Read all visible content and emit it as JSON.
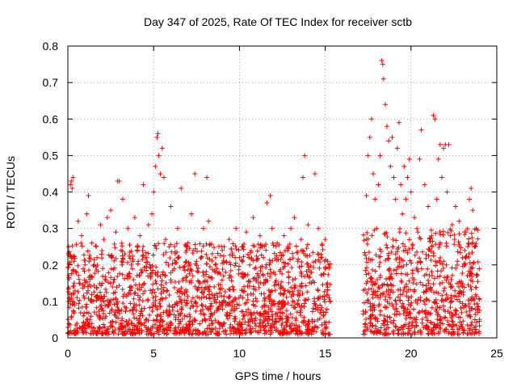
{
  "chart_data": {
    "type": "scatter",
    "title": "Day 347 of 2025, Rate Of TEC Index for receiver sctb",
    "xlabel": "GPS time / hours",
    "ylabel": "ROTI / TECUs",
    "xlim": [
      0,
      25
    ],
    "ylim": [
      0,
      0.8
    ],
    "xticks": [
      0,
      5,
      10,
      15,
      20,
      25
    ],
    "yticks": [
      0,
      0.1,
      0.2,
      0.3,
      0.4,
      0.5,
      0.6,
      0.7,
      0.8
    ],
    "grid": true,
    "marker": "+",
    "color": "#ff0000",
    "series": [
      {
        "points": [
          [
            0.05,
            0.25
          ],
          [
            0.1,
            0.12
          ],
          [
            0.15,
            0.42
          ],
          [
            0.2,
            0.43
          ],
          [
            0.25,
            0.41
          ],
          [
            0.3,
            0.44
          ],
          [
            0.35,
            0.21
          ],
          [
            0.4,
            0.09
          ],
          [
            0.5,
            0.18
          ],
          [
            0.6,
            0.32
          ],
          [
            0.7,
            0.15
          ],
          [
            0.8,
            0.28
          ],
          [
            0.9,
            0.06
          ],
          [
            1.0,
            0.2
          ],
          [
            1.1,
            0.34
          ],
          [
            1.2,
            0.39
          ],
          [
            1.3,
            0.16
          ],
          [
            1.4,
            0.26
          ],
          [
            1.5,
            0.1
          ],
          [
            1.7,
            0.22
          ],
          [
            1.9,
            0.31
          ],
          [
            2.0,
            0.08
          ],
          [
            2.1,
            0.27
          ],
          [
            2.3,
            0.33
          ],
          [
            2.5,
            0.35
          ],
          [
            2.6,
            0.14
          ],
          [
            2.8,
            0.29
          ],
          [
            2.9,
            0.43
          ],
          [
            3.0,
            0.43
          ],
          [
            3.1,
            0.24
          ],
          [
            3.2,
            0.38
          ],
          [
            3.3,
            0.12
          ],
          [
            3.5,
            0.3
          ],
          [
            3.7,
            0.2
          ],
          [
            3.9,
            0.33
          ],
          [
            4.0,
            0.09
          ],
          [
            4.2,
            0.28
          ],
          [
            4.4,
            0.42
          ],
          [
            4.6,
            0.22
          ],
          [
            4.7,
            0.31
          ],
          [
            4.8,
            0.17
          ],
          [
            4.9,
            0.34
          ],
          [
            5.0,
            0.4
          ],
          [
            5.1,
            0.47
          ],
          [
            5.2,
            0.55
          ],
          [
            5.25,
            0.56
          ],
          [
            5.3,
            0.5
          ],
          [
            5.4,
            0.45
          ],
          [
            5.5,
            0.52
          ],
          [
            5.6,
            0.44
          ],
          [
            5.7,
            0.27
          ],
          [
            5.8,
            0.13
          ],
          [
            5.9,
            0.25
          ],
          [
            6.0,
            0.36
          ],
          [
            6.2,
            0.19
          ],
          [
            6.4,
            0.3
          ],
          [
            6.6,
            0.41
          ],
          [
            6.8,
            0.12
          ],
          [
            7.0,
            0.26
          ],
          [
            7.2,
            0.34
          ],
          [
            7.4,
            0.45
          ],
          [
            7.5,
            0.21
          ],
          [
            7.7,
            0.15
          ],
          [
            7.9,
            0.3
          ],
          [
            8.1,
            0.44
          ],
          [
            8.2,
            0.32
          ],
          [
            8.4,
            0.12
          ],
          [
            8.6,
            0.2
          ],
          [
            8.8,
            0.08
          ],
          [
            9.0,
            0.24
          ],
          [
            9.2,
            0.18
          ],
          [
            9.4,
            0.27
          ],
          [
            9.6,
            0.14
          ],
          [
            9.8,
            0.3
          ],
          [
            10.0,
            0.22
          ],
          [
            10.2,
            0.11
          ],
          [
            10.4,
            0.29
          ],
          [
            10.6,
            0.2
          ],
          [
            10.8,
            0.33
          ],
          [
            11.0,
            0.16
          ],
          [
            11.2,
            0.28
          ],
          [
            11.4,
            0.22
          ],
          [
            11.6,
            0.37
          ],
          [
            11.8,
            0.39
          ],
          [
            11.9,
            0.3
          ],
          [
            12.0,
            0.18
          ],
          [
            12.2,
            0.26
          ],
          [
            12.4,
            0.12
          ],
          [
            12.6,
            0.28
          ],
          [
            12.8,
            0.24
          ],
          [
            13.0,
            0.3
          ],
          [
            13.2,
            0.33
          ],
          [
            13.4,
            0.21
          ],
          [
            13.6,
            0.27
          ],
          [
            13.7,
            0.44
          ],
          [
            13.8,
            0.5
          ],
          [
            14.0,
            0.31
          ],
          [
            14.2,
            0.18
          ],
          [
            14.4,
            0.45
          ],
          [
            14.6,
            0.3
          ],
          [
            14.8,
            0.22
          ],
          [
            15.0,
            0.27
          ],
          [
            15.2,
            0.2
          ],
          [
            17.4,
            0.39
          ],
          [
            17.5,
            0.5
          ],
          [
            17.6,
            0.55
          ],
          [
            17.7,
            0.6
          ],
          [
            17.8,
            0.45
          ],
          [
            17.9,
            0.38
          ],
          [
            18.0,
            0.3
          ],
          [
            18.1,
            0.42
          ],
          [
            18.2,
            0.5
          ],
          [
            18.3,
            0.76
          ],
          [
            18.35,
            0.75
          ],
          [
            18.4,
            0.71
          ],
          [
            18.5,
            0.64
          ],
          [
            18.6,
            0.58
          ],
          [
            18.7,
            0.54
          ],
          [
            18.8,
            0.47
          ],
          [
            18.9,
            0.55
          ],
          [
            19.0,
            0.44
          ],
          [
            19.1,
            0.38
          ],
          [
            19.2,
            0.52
          ],
          [
            19.3,
            0.59
          ],
          [
            19.4,
            0.42
          ],
          [
            19.5,
            0.34
          ],
          [
            19.6,
            0.47
          ],
          [
            19.7,
            0.38
          ],
          [
            19.8,
            0.44
          ],
          [
            19.9,
            0.49
          ],
          [
            20.0,
            0.4
          ],
          [
            20.2,
            0.33
          ],
          [
            20.4,
            0.29
          ],
          [
            20.5,
            0.49
          ],
          [
            20.6,
            0.57
          ],
          [
            20.8,
            0.42
          ],
          [
            21.0,
            0.36
          ],
          [
            21.2,
            0.28
          ],
          [
            21.3,
            0.61
          ],
          [
            21.4,
            0.6
          ],
          [
            21.5,
            0.38
          ],
          [
            21.6,
            0.49
          ],
          [
            21.7,
            0.53
          ],
          [
            21.8,
            0.44
          ],
          [
            21.9,
            0.52
          ],
          [
            22.0,
            0.53
          ],
          [
            22.1,
            0.4
          ],
          [
            22.2,
            0.53
          ],
          [
            22.3,
            0.28
          ],
          [
            22.4,
            0.31
          ],
          [
            22.6,
            0.36
          ],
          [
            22.8,
            0.32
          ],
          [
            23.0,
            0.22
          ],
          [
            23.2,
            0.29
          ],
          [
            23.4,
            0.38
          ],
          [
            23.5,
            0.41
          ],
          [
            23.6,
            0.35
          ],
          [
            23.7,
            0.25
          ],
          [
            23.8,
            0.3
          ]
        ],
        "bands": [
          [
            0.0,
            15.3,
            0.01,
            0.26
          ],
          [
            17.2,
            24.0,
            0.01,
            0.3
          ]
        ]
      }
    ]
  }
}
